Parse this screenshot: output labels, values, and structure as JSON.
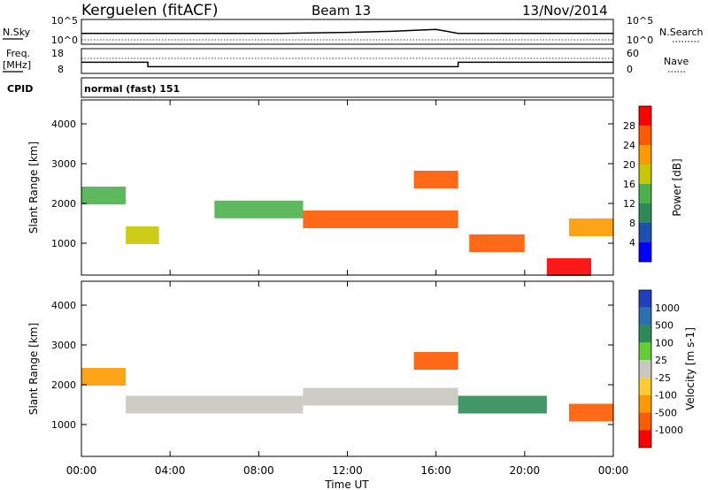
{
  "header": {
    "station": "Kerguelen (fitACF)",
    "beam": "Beam 13",
    "date": "13/Nov/2014"
  },
  "sky_panel": {
    "label": "N.Sky",
    "left_ticks": [
      "10^5",
      "10^0"
    ],
    "right_ticks": [
      "10^5",
      "10^0"
    ],
    "right_label": "N.Search"
  },
  "freq_panel": {
    "label_lines": [
      "Freq.",
      "[MHz]"
    ],
    "left_ticks": [
      "18",
      "8"
    ],
    "right_ticks": [
      "60",
      "0"
    ],
    "right_label": "Nave"
  },
  "cpid": {
    "label": "CPID",
    "value": "normal (fast) 151"
  },
  "power_colorbar": {
    "label": "Power [dB]",
    "ticks": [
      "4",
      "8",
      "12",
      "16",
      "20",
      "24",
      "28"
    ],
    "colors": [
      "#0000ff",
      "#1f4fb0",
      "#2e8b57",
      "#4cb04c",
      "#c8c800",
      "#ff9900",
      "#ff5a00",
      "#ff0000"
    ]
  },
  "velocity_colorbar": {
    "label": "Velocity [m s-1]",
    "ticks": [
      "1000",
      "500",
      "100",
      "25",
      "-25",
      "-100",
      "-500",
      "-1000"
    ],
    "colors": [
      "#1f3fbf",
      "#2e6fb0",
      "#2e8b57",
      "#66cc33",
      "#c8c8c0",
      "#ffcc33",
      "#ff9900",
      "#ff5a00",
      "#ff0000"
    ]
  },
  "chart_data": [
    {
      "type": "line",
      "title": "Kerguelen (fitACF) Beam 13 13/Nov/2014",
      "panel": "N.Sky",
      "x": [
        0,
        9,
        12,
        14,
        16,
        17,
        24
      ],
      "values": [
        2.2,
        2.2,
        2.4,
        2.6,
        3.0,
        2.2,
        2.2
      ],
      "ylim_log10": [
        0,
        5
      ]
    },
    {
      "type": "line",
      "panel": "Freq. [MHz]",
      "x": [
        0,
        3,
        3,
        17,
        17,
        24
      ],
      "values": [
        12.5,
        12.5,
        10.7,
        10.7,
        12.5,
        12.5
      ],
      "ylim": [
        8,
        18
      ]
    },
    {
      "type": "heatmap",
      "panel": "Power",
      "ylabel": "Slant Range [km]",
      "xlabel": "Time UT",
      "xticks": [
        "00:00",
        "04:00",
        "08:00",
        "12:00",
        "16:00",
        "20:00",
        "00:00"
      ],
      "xlim": [
        0,
        24
      ],
      "yticks": [
        "1000",
        "2000",
        "3000",
        "4000"
      ],
      "ylim": [
        200,
        4600
      ],
      "zlabel": "Power [dB]",
      "features": [
        {
          "x_start": 0,
          "x_end": 2,
          "range_km": 2200,
          "power_db": 12
        },
        {
          "x_start": 2,
          "x_end": 3.5,
          "range_km": 1200,
          "power_db": 16
        },
        {
          "x_start": 6,
          "x_end": 10,
          "range_km": 1850,
          "power_db": 14
        },
        {
          "x_start": 10,
          "x_end": 17,
          "range_km": 1600,
          "power_db": 26
        },
        {
          "x_start": 15,
          "x_end": 17,
          "range_km": 2600,
          "power_db": 24
        },
        {
          "x_start": 17.5,
          "x_end": 20,
          "range_km": 1000,
          "power_db": 26
        },
        {
          "x_start": 22,
          "x_end": 24,
          "range_km": 1400,
          "power_db": 22
        },
        {
          "x_start": 21,
          "x_end": 23,
          "range_km": 400,
          "power_db": 28
        }
      ]
    },
    {
      "type": "heatmap",
      "panel": "Velocity",
      "ylabel": "Slant Range [km]",
      "xlabel": "Time UT",
      "xticks": [
        "00:00",
        "04:00",
        "08:00",
        "12:00",
        "16:00",
        "20:00",
        "00:00"
      ],
      "xlim": [
        0,
        24
      ],
      "yticks": [
        "1000",
        "2000",
        "3000",
        "4000"
      ],
      "ylim": [
        200,
        4600
      ],
      "zlabel": "Velocity [m s-1]",
      "features": [
        {
          "x_start": 0,
          "x_end": 2,
          "range_km": 2200,
          "velocity": -100
        },
        {
          "x_start": 2,
          "x_end": 10,
          "range_km": 1500,
          "velocity": 0
        },
        {
          "x_start": 10,
          "x_end": 17,
          "range_km": 1700,
          "velocity": 0
        },
        {
          "x_start": 15,
          "x_end": 17,
          "range_km": 2600,
          "velocity": -300
        },
        {
          "x_start": 17,
          "x_end": 21,
          "range_km": 1500,
          "velocity": 100
        },
        {
          "x_start": 22,
          "x_end": 24,
          "range_km": 1300,
          "velocity": -300
        }
      ]
    }
  ]
}
